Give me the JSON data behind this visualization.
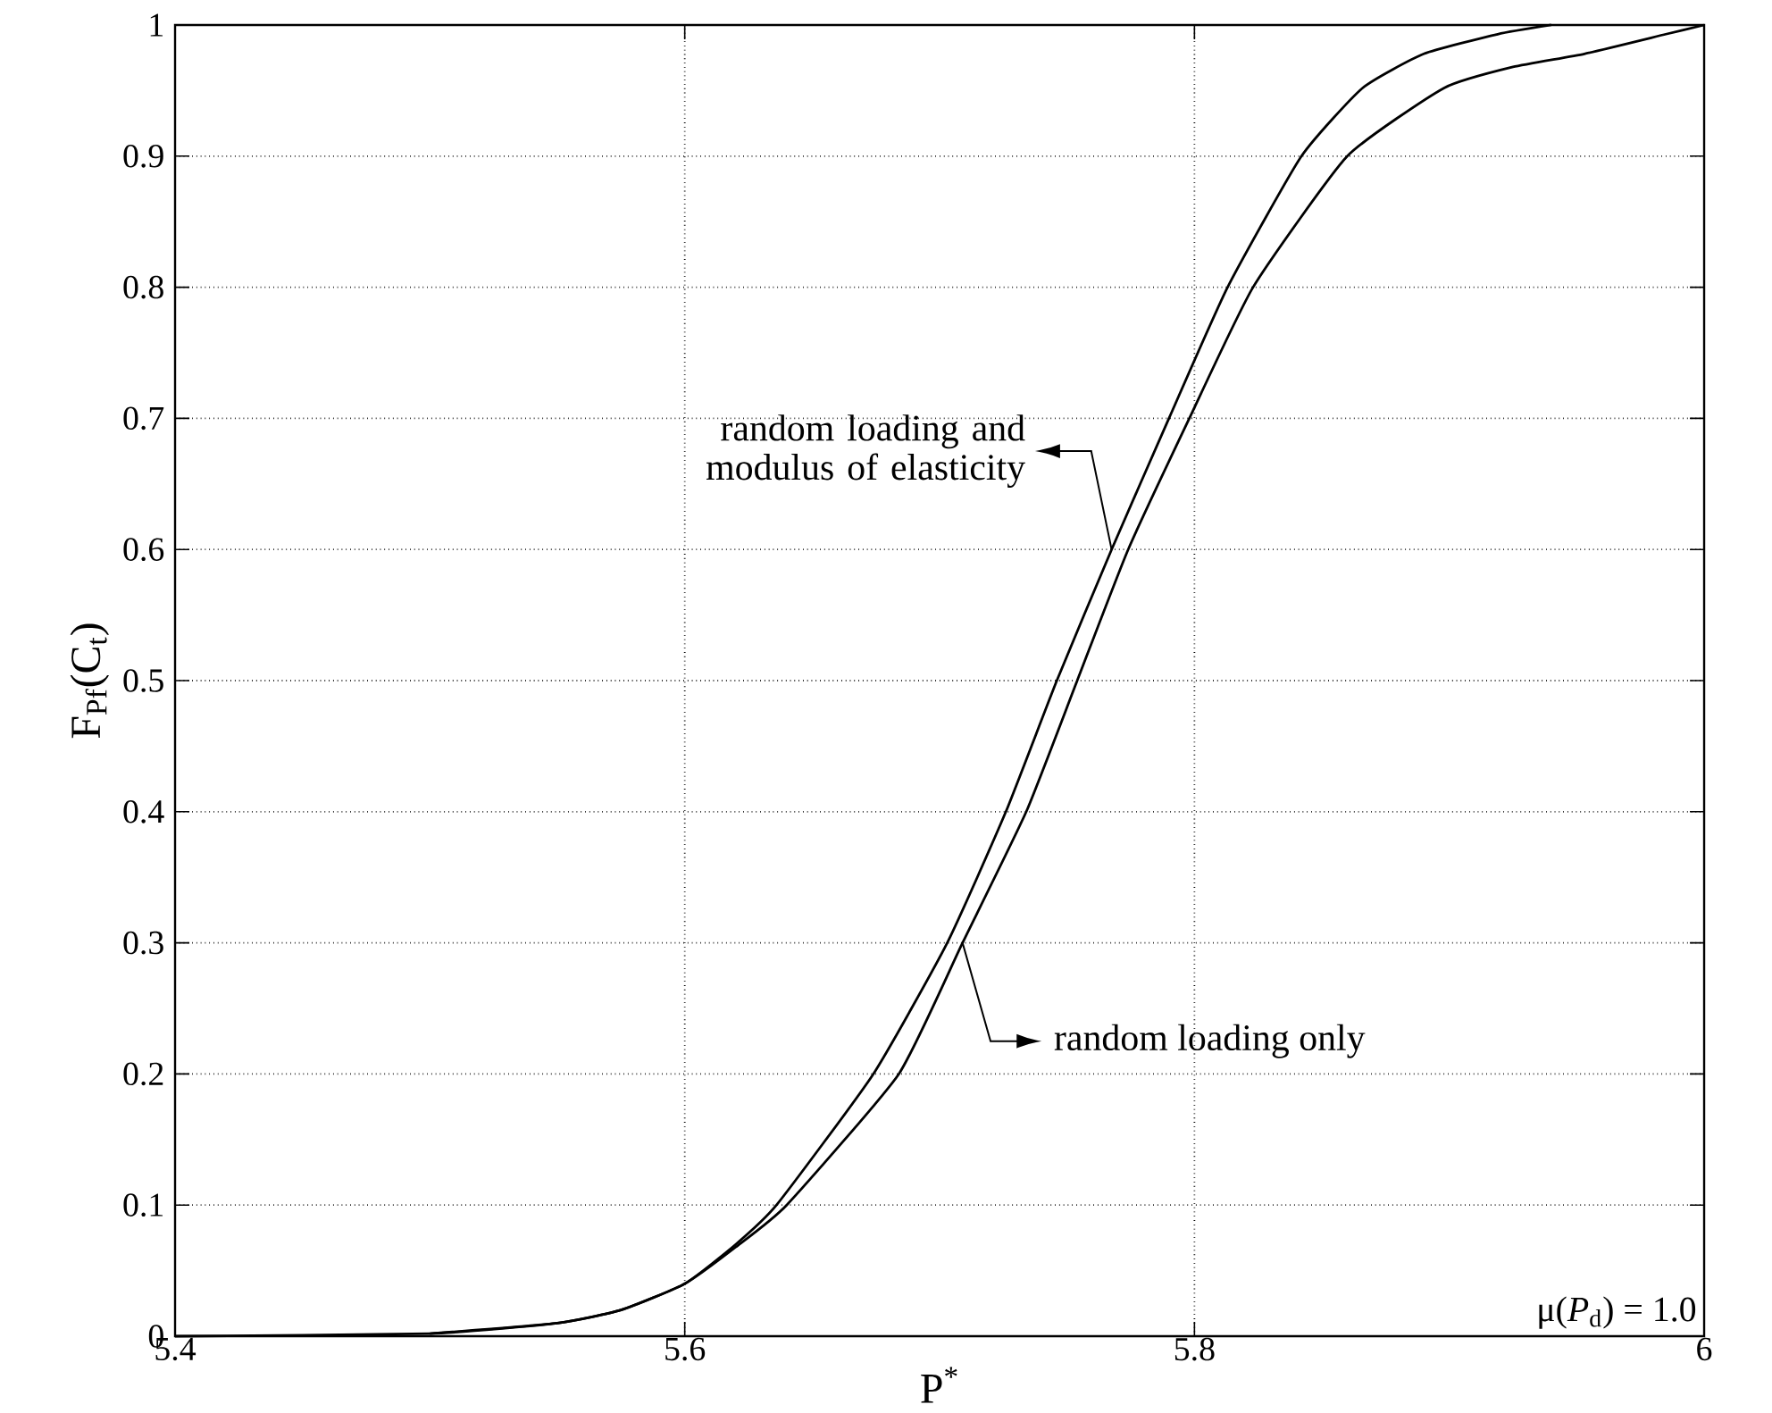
{
  "chart_data": {
    "type": "line",
    "xlabel": "P$^{*}$",
    "ylabel": "F$_{Pf}$(C$_{t}$)",
    "xlim": [
      5.4,
      6
    ],
    "ylim": [
      0,
      1
    ],
    "xticks": [
      5.4,
      5.6,
      5.8,
      6
    ],
    "yticks": [
      0,
      0.1,
      0.2,
      0.3,
      0.4,
      0.5,
      0.6,
      0.7,
      0.8,
      0.9,
      1
    ],
    "grid": true,
    "marker": "none",
    "line_style": "solid",
    "series": [
      {
        "name": "random loading and modulus of elasticity",
        "color": "#000000",
        "x": [
          5.4,
          5.5,
          5.55,
          5.575,
          5.6,
          5.62,
          5.636,
          5.674,
          5.703,
          5.726,
          5.746,
          5.7675,
          5.79,
          5.813,
          5.842,
          5.866,
          5.89,
          5.919,
          5.94
        ],
        "values": [
          0,
          0.002,
          0.01,
          0.02,
          0.04,
          0.07,
          0.1,
          0.2,
          0.3,
          0.4,
          0.5,
          0.6,
          0.7,
          0.8,
          0.9,
          0.952,
          0.978,
          0.993,
          1
        ]
      },
      {
        "name": "random loading only",
        "color": "#000000",
        "x": [
          5.5,
          5.55,
          5.575,
          5.6,
          5.62,
          5.64,
          5.684,
          5.709,
          5.734,
          5.754,
          5.774,
          5.798,
          5.823,
          5.86,
          5.898,
          5.925,
          5.953,
          5.985,
          6
        ],
        "values": [
          0.002,
          0.01,
          0.02,
          0.04,
          0.068,
          0.1,
          0.2,
          0.3,
          0.4,
          0.5,
          0.6,
          0.7,
          0.8,
          0.9,
          0.952,
          0.968,
          0.978,
          0.993,
          1
        ]
      }
    ],
    "annotations": [
      "μ(*P*$_{d}$) = 1.0"
    ]
  }
}
